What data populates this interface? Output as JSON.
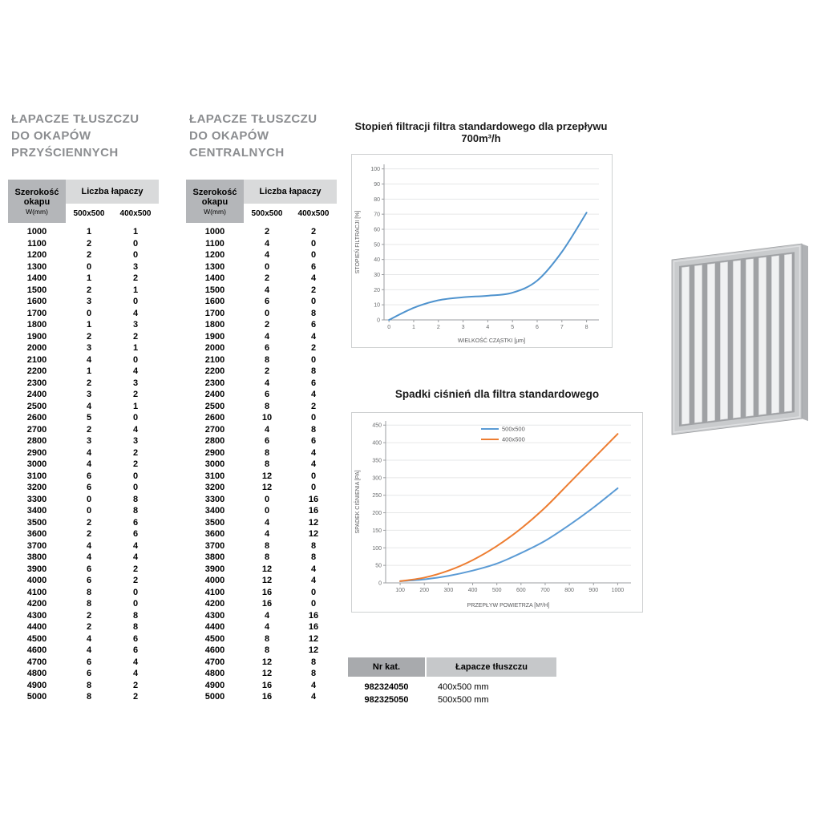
{
  "tables": [
    {
      "title_lines": [
        "ŁAPACZE TŁUSZCZU",
        "DO OKAPÓW",
        "PRZYŚCIENNYCH"
      ],
      "header": {
        "col1_l1": "Szerokość",
        "col1_l2": "okapu",
        "col1_sub": "W(mm)",
        "group": "Liczba łapaczy",
        "sizes": [
          "500x500",
          "400x500"
        ]
      },
      "rows": [
        [
          1000,
          1,
          1
        ],
        [
          1100,
          2,
          0
        ],
        [
          1200,
          2,
          0
        ],
        [
          1300,
          0,
          3
        ],
        [
          1400,
          1,
          2
        ],
        [
          1500,
          2,
          1
        ],
        [
          1600,
          3,
          0
        ],
        [
          1700,
          0,
          4
        ],
        [
          1800,
          1,
          3
        ],
        [
          1900,
          2,
          2
        ],
        [
          2000,
          3,
          1
        ],
        [
          2100,
          4,
          0
        ],
        [
          2200,
          1,
          4
        ],
        [
          2300,
          2,
          3
        ],
        [
          2400,
          3,
          2
        ],
        [
          2500,
          4,
          1
        ],
        [
          2600,
          5,
          0
        ],
        [
          2700,
          2,
          4
        ],
        [
          2800,
          3,
          3
        ],
        [
          2900,
          4,
          2
        ],
        [
          3000,
          4,
          2
        ],
        [
          3100,
          6,
          0
        ],
        [
          3200,
          6,
          0
        ],
        [
          3300,
          0,
          8
        ],
        [
          3400,
          0,
          8
        ],
        [
          3500,
          2,
          6
        ],
        [
          3600,
          2,
          6
        ],
        [
          3700,
          4,
          4
        ],
        [
          3800,
          4,
          4
        ],
        [
          3900,
          6,
          2
        ],
        [
          4000,
          6,
          2
        ],
        [
          4100,
          8,
          0
        ],
        [
          4200,
          8,
          0
        ],
        [
          4300,
          2,
          8
        ],
        [
          4400,
          2,
          8
        ],
        [
          4500,
          4,
          6
        ],
        [
          4600,
          4,
          6
        ],
        [
          4700,
          6,
          4
        ],
        [
          4800,
          6,
          4
        ],
        [
          4900,
          8,
          2
        ],
        [
          5000,
          8,
          2
        ]
      ]
    },
    {
      "title_lines": [
        "ŁAPACZE TŁUSZCZU",
        "DO OKAPÓW",
        "CENTRALNYCH"
      ],
      "header": {
        "col1_l1": "Szerokość",
        "col1_l2": "okapu",
        "col1_sub": "W(mm)",
        "group": "Liczba łapaczy",
        "sizes": [
          "500x500",
          "400x500"
        ]
      },
      "rows": [
        [
          1000,
          2,
          2
        ],
        [
          1100,
          4,
          0
        ],
        [
          1200,
          4,
          0
        ],
        [
          1300,
          0,
          6
        ],
        [
          1400,
          2,
          4
        ],
        [
          1500,
          4,
          2
        ],
        [
          1600,
          6,
          0
        ],
        [
          1700,
          0,
          8
        ],
        [
          1800,
          2,
          6
        ],
        [
          1900,
          4,
          4
        ],
        [
          2000,
          6,
          2
        ],
        [
          2100,
          8,
          0
        ],
        [
          2200,
          2,
          8
        ],
        [
          2300,
          4,
          6
        ],
        [
          2400,
          6,
          4
        ],
        [
          2500,
          8,
          2
        ],
        [
          2600,
          10,
          0
        ],
        [
          2700,
          4,
          8
        ],
        [
          2800,
          6,
          6
        ],
        [
          2900,
          8,
          4
        ],
        [
          3000,
          8,
          4
        ],
        [
          3100,
          12,
          0
        ],
        [
          3200,
          12,
          0
        ],
        [
          3300,
          0,
          16
        ],
        [
          3400,
          0,
          16
        ],
        [
          3500,
          4,
          12
        ],
        [
          3600,
          4,
          12
        ],
        [
          3700,
          8,
          8
        ],
        [
          3800,
          8,
          8
        ],
        [
          3900,
          12,
          4
        ],
        [
          4000,
          12,
          4
        ],
        [
          4100,
          16,
          0
        ],
        [
          4200,
          16,
          0
        ],
        [
          4300,
          4,
          16
        ],
        [
          4400,
          4,
          16
        ],
        [
          4500,
          8,
          12
        ],
        [
          4600,
          8,
          12
        ],
        [
          4700,
          12,
          8
        ],
        [
          4800,
          12,
          8
        ],
        [
          4900,
          16,
          4
        ],
        [
          5000,
          16,
          4
        ]
      ]
    }
  ],
  "chart_data": [
    {
      "type": "line",
      "title": "Stopień filtracji filtra standardowego dla przepływu 700m³/h",
      "xlabel": "WIELKOŚĆ CZĄSTKI [µm]",
      "ylabel": "STOPIEŃ FILTRACJI [%]",
      "x": [
        0,
        1,
        2,
        3,
        4,
        5,
        6,
        7,
        8
      ],
      "xticks": [
        0,
        1,
        2,
        3,
        4,
        5,
        6,
        7,
        8
      ],
      "yticks": [
        0,
        10,
        20,
        30,
        40,
        50,
        60,
        70,
        80,
        90,
        100
      ],
      "xlim": [
        -0.2,
        8.5
      ],
      "ylim": [
        0,
        103
      ],
      "grid": true,
      "legend": null,
      "series": [
        {
          "name": "stopień filtracji",
          "color": "#4f93ce",
          "values": [
            0,
            8,
            13,
            15,
            16,
            18,
            26,
            45,
            71
          ]
        }
      ]
    },
    {
      "type": "line",
      "title": "Spadki ciśnień dla filtra standardowego",
      "xlabel": "PRZEPŁYW POWIETRZA [M³/H]",
      "ylabel": "SPADEK CIŚNIENIA [PA]",
      "x": [
        100,
        200,
        300,
        400,
        500,
        600,
        700,
        800,
        900,
        1000
      ],
      "xticks": [
        100,
        200,
        300,
        400,
        500,
        600,
        700,
        800,
        900,
        1000
      ],
      "yticks": [
        0,
        50,
        100,
        150,
        200,
        250,
        300,
        350,
        400,
        450
      ],
      "xlim": [
        40,
        1055
      ],
      "ylim": [
        0,
        462
      ],
      "grid": true,
      "legend": "top",
      "series": [
        {
          "name": "500x500",
          "color": "#5b9bd5",
          "values": [
            5,
            10,
            20,
            35,
            55,
            85,
            120,
            165,
            215,
            270
          ]
        },
        {
          "name": "400x500",
          "color": "#ed7d31",
          "values": [
            5,
            15,
            35,
            65,
            105,
            155,
            215,
            285,
            355,
            425
          ]
        }
      ]
    }
  ],
  "catalog": {
    "headers": [
      "Nr kat.",
      "Łapacze tłuszczu"
    ],
    "rows": [
      [
        "982324050",
        "400x500 mm"
      ],
      [
        "982325050",
        "500x500 mm"
      ]
    ]
  }
}
